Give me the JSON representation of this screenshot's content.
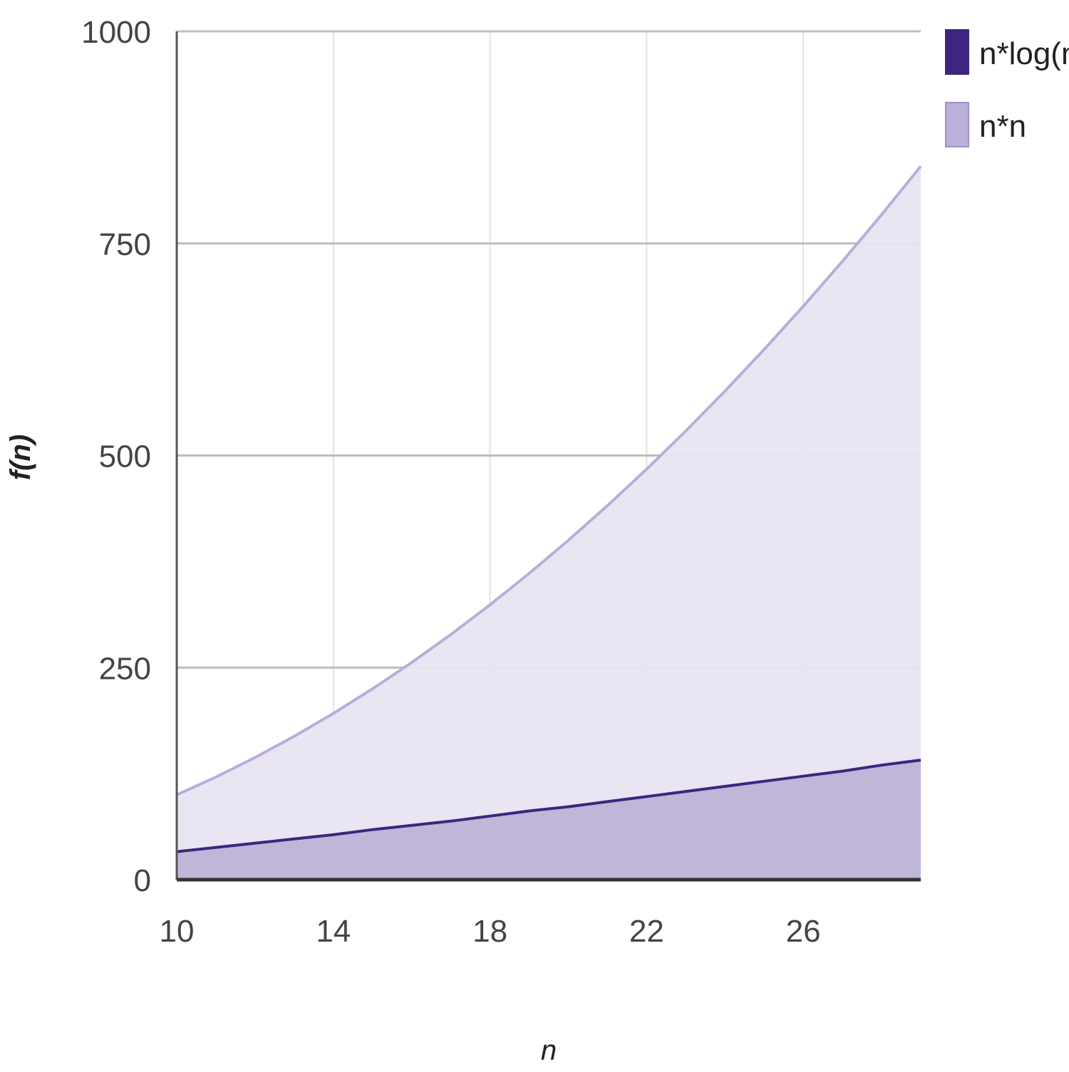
{
  "chart_data": {
    "type": "area",
    "xlabel": "n",
    "ylabel": "f(n)",
    "xlim": [
      10,
      29
    ],
    "ylim": [
      0,
      1000
    ],
    "x_ticks": [
      10,
      14,
      18,
      22,
      26
    ],
    "y_ticks": [
      0,
      250,
      500,
      750,
      1000
    ],
    "grid": true,
    "legend": "right",
    "x": [
      10,
      11,
      12,
      13,
      14,
      15,
      16,
      17,
      18,
      19,
      20,
      21,
      22,
      23,
      24,
      25,
      26,
      27,
      28,
      29
    ],
    "series": [
      {
        "name": "n*log(n)",
        "color": "#3d2580",
        "fill": "#bdb3d6",
        "values": [
          33,
          38,
          43,
          48,
          53,
          59,
          64,
          69,
          75,
          81,
          86,
          92,
          98,
          104,
          110,
          116,
          122,
          128,
          135,
          141
        ]
      },
      {
        "name": "n*n",
        "color": "#b9addb",
        "fill": "#e8e4f2",
        "values": [
          100,
          121,
          144,
          169,
          196,
          225,
          256,
          289,
          324,
          361,
          400,
          441,
          484,
          529,
          576,
          625,
          676,
          729,
          784,
          841
        ]
      }
    ]
  }
}
